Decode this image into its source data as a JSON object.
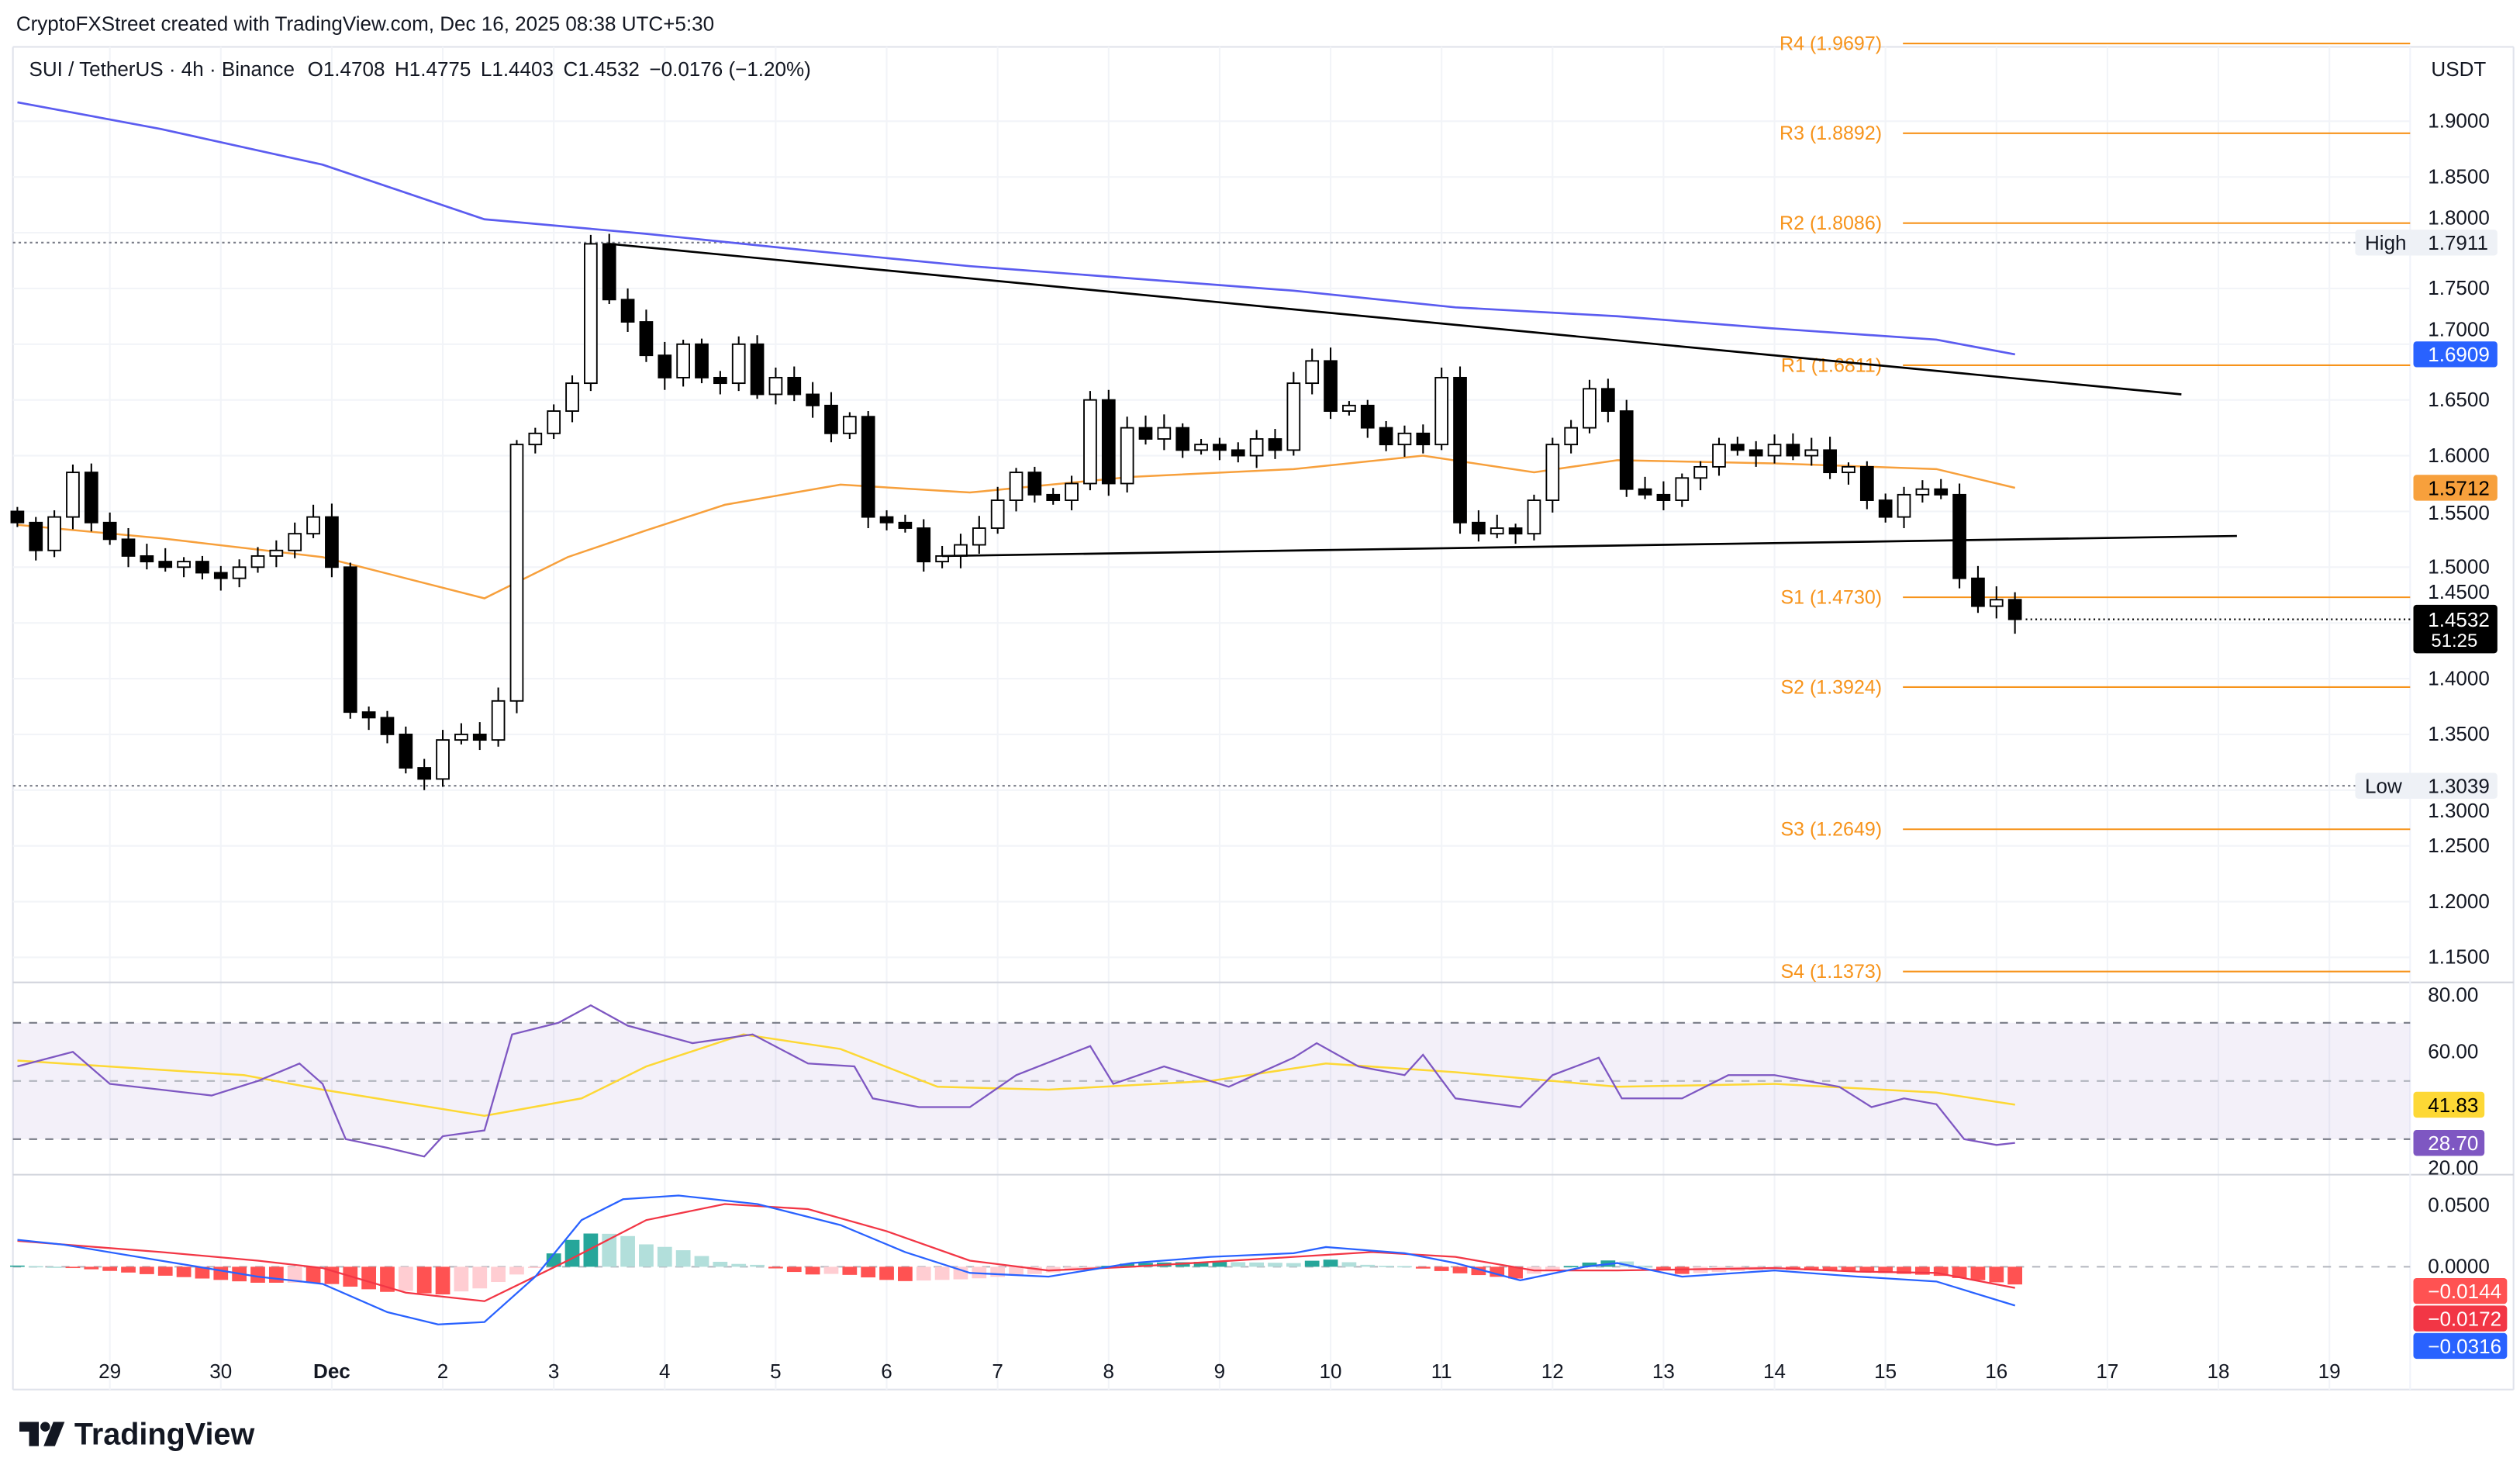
{
  "caption": "CryptoFXStreet created with TradingView.com, Dec 16, 2025 08:38 UTC+5:30",
  "header": {
    "symbol": "SUI / TetherUS · 4h · Binance",
    "open": "O1.4708",
    "high": "H1.4775",
    "low": "L1.4403",
    "close": "C1.4532",
    "change": "−0.0176 (−1.20%)"
  },
  "currency": "USDT",
  "logo_text": "TradingView",
  "colors": {
    "up_body": "#ffffff",
    "down_body": "#000000",
    "ma_long": "#5b5cf0",
    "ma_short": "#f7a03c",
    "pivot": "#f7931a",
    "rsi": "#7e57c2",
    "rsi_ma": "#fdd835",
    "macd": "#2962ff",
    "signal": "#f23645",
    "hist_up_strong": "#26a69a",
    "hist_up_weak": "#b2dfdb",
    "hist_down_strong": "#ff5252",
    "hist_down_weak": "#ffcdd2"
  },
  "chart_data": {
    "type": "candlestick",
    "interval": "4h",
    "start": "Nov 28 04:00",
    "closes": [
      1.54,
      1.515,
      1.545,
      1.585,
      1.54,
      1.525,
      1.51,
      1.505,
      1.5,
      1.505,
      1.495,
      1.49,
      1.5,
      1.51,
      1.515,
      1.53,
      1.545,
      1.5,
      1.37,
      1.365,
      1.35,
      1.32,
      1.31,
      1.345,
      1.35,
      1.345,
      1.38,
      1.61,
      1.62,
      1.64,
      1.665,
      1.79,
      1.74,
      1.72,
      1.69,
      1.67,
      1.7,
      1.67,
      1.665,
      1.7,
      1.655,
      1.67,
      1.655,
      1.645,
      1.62,
      1.635,
      1.545,
      1.54,
      1.535,
      1.505,
      1.51,
      1.52,
      1.535,
      1.56,
      1.585,
      1.565,
      1.56,
      1.575,
      1.65,
      1.575,
      1.625,
      1.615,
      1.625,
      1.605,
      1.61,
      1.605,
      1.6,
      1.615,
      1.605,
      1.665,
      1.685,
      1.64,
      1.645,
      1.625,
      1.61,
      1.62,
      1.61,
      1.67,
      1.54,
      1.53,
      1.535,
      1.53,
      1.56,
      1.61,
      1.625,
      1.66,
      1.64,
      1.57,
      1.565,
      1.56,
      1.58,
      1.59,
      1.61,
      1.605,
      1.6,
      1.61,
      1.6,
      1.605,
      1.585,
      1.59,
      1.56,
      1.545,
      1.565,
      1.57,
      1.565,
      1.49,
      1.465,
      1.4708,
      1.4532
    ],
    "first_open": 1.55,
    "last_candle": {
      "open": 1.4708,
      "high": 1.4775,
      "low": 1.4403,
      "close": 1.4532
    },
    "price_ticks": [
      "1.9000",
      "1.8500",
      "1.8000",
      "1.7500",
      "1.7000",
      "1.6500",
      "1.6000",
      "1.5500",
      "1.5000",
      "1.4500",
      "1.4000",
      "1.3500",
      "1.3000",
      "1.2500",
      "1.2000",
      "1.1500"
    ],
    "time_labels": [
      "29",
      "30",
      "Dec",
      "2",
      "3",
      "4",
      "5",
      "6",
      "7",
      "8",
      "9",
      "10",
      "11",
      "12",
      "13",
      "14",
      "15",
      "16",
      "17",
      "18",
      "19"
    ],
    "ma_long": [
      [
        "Nov 28 04:00",
        1.917
      ],
      [
        "Nov 29 11:00",
        1.893
      ],
      [
        "Nov 30 22:00",
        1.861
      ],
      [
        "Dec 2 09:00",
        1.812
      ],
      [
        "Dec 3 20:00",
        1.799
      ],
      [
        "Dec 5 07:00",
        1.784
      ],
      [
        "Dec 6 18:00",
        1.77
      ],
      [
        "Dec 8 05:00",
        1.759
      ],
      [
        "Dec 9 16:00",
        1.748
      ],
      [
        "Dec 11 03:00",
        1.733
      ],
      [
        "Dec 12 14:00",
        1.725
      ],
      [
        "Dec 14 00:00",
        1.714
      ],
      [
        "Dec 15 11:00",
        1.704
      ],
      [
        "Dec 16 04:00",
        1.6909
      ]
    ],
    "ma_short": [
      [
        "Nov 28 04:00",
        1.538
      ],
      [
        "Nov 29 11:00",
        1.526
      ],
      [
        "Nov 30 22:00",
        1.509
      ],
      [
        "Dec 1 16:00",
        1.49
      ],
      [
        "Dec 2 09:00",
        1.472
      ],
      [
        "Dec 3 03:00",
        1.509
      ],
      [
        "Dec 3 20:00",
        1.533
      ],
      [
        "Dec 4 13:00",
        1.556
      ],
      [
        "Dec 5 14:00",
        1.574
      ],
      [
        "Dec 6 18:00",
        1.567
      ],
      [
        "Dec 8 05:00",
        1.581
      ],
      [
        "Dec 9 16:00",
        1.588
      ],
      [
        "Dec 10 20:00",
        1.6
      ],
      [
        "Dec 11 20:00",
        1.585
      ],
      [
        "Dec 12 14:00",
        1.596
      ],
      [
        "Dec 14 00:00",
        1.593
      ],
      [
        "Dec 15 11:00",
        1.588
      ],
      [
        "Dec 16 04:00",
        1.5712
      ]
    ],
    "trendlines": [
      {
        "from": [
          "Dec 3 12:00",
          1.79
        ],
        "to": [
          "Dec 17 16:00",
          1.655
        ]
      },
      {
        "from": [
          "Dec 6 12:00",
          1.51
        ],
        "to": [
          "Dec 18 04:00",
          1.528
        ]
      }
    ],
    "pivots": [
      {
        "label": "R4 (1.9697)",
        "value": 1.9697
      },
      {
        "label": "R3 (1.8892)",
        "value": 1.8892
      },
      {
        "label": "R2 (1.8086)",
        "value": 1.8086
      },
      {
        "label": "R1 (1.6811)",
        "value": 1.6811
      },
      {
        "label": "S1 (1.4730)",
        "value": 1.473
      },
      {
        "label": "S2 (1.3924)",
        "value": 1.3924
      },
      {
        "label": "S3 (1.2649)",
        "value": 1.2649
      },
      {
        "label": "S4 (1.1373)",
        "value": 1.1373
      }
    ],
    "range_high": {
      "label": "High",
      "value": 1.7911,
      "text": "1.7911"
    },
    "range_low": {
      "label": "Low",
      "value": 1.3039,
      "text": "1.3039"
    },
    "price_badges": {
      "ma_long": "1.6909",
      "ma_short": "1.5712",
      "last": "1.4532",
      "countdown": "51:25"
    },
    "rsi": {
      "ticks": [
        "80.00",
        "60.00",
        "20.00"
      ],
      "bands": [
        70,
        50,
        30
      ],
      "values": [
        [
          "Nov 28 04:00",
          55
        ],
        [
          "Nov 28 16:00",
          60
        ],
        [
          "Nov 29 00:00",
          49
        ],
        [
          "Nov 29 11:00",
          47
        ],
        [
          "Nov 29 22:00",
          45
        ],
        [
          "Nov 30 08:00",
          50
        ],
        [
          "Nov 30 17:00",
          56
        ],
        [
          "Nov 30 22:00",
          49
        ],
        [
          "Dec 1 03:00",
          30
        ],
        [
          "Dec 1 12:00",
          27
        ],
        [
          "Dec 1 20:00",
          24
        ],
        [
          "Dec 2 00:00",
          31
        ],
        [
          "Dec 2 09:00",
          33
        ],
        [
          "Dec 2 15:00",
          66
        ],
        [
          "Dec 3 01:00",
          70
        ],
        [
          "Dec 3 08:00",
          76
        ],
        [
          "Dec 3 16:00",
          69
        ],
        [
          "Dec 4 06:00",
          63
        ],
        [
          "Dec 4 19:00",
          66
        ],
        [
          "Dec 5 07:00",
          56
        ],
        [
          "Dec 5 17:00",
          55
        ],
        [
          "Dec 5 21:00",
          44
        ],
        [
          "Dec 6 07:00",
          41
        ],
        [
          "Dec 6 18:00",
          41
        ],
        [
          "Dec 7 04:00",
          52
        ],
        [
          "Dec 7 20:00",
          62
        ],
        [
          "Dec 8 01:00",
          49
        ],
        [
          "Dec 8 12:00",
          55
        ],
        [
          "Dec 9 02:00",
          48
        ],
        [
          "Dec 9 16:00",
          58
        ],
        [
          "Dec 9 21:00",
          63
        ],
        [
          "Dec 10 06:00",
          55
        ],
        [
          "Dec 10 16:00",
          52
        ],
        [
          "Dec 10 20:00",
          59
        ],
        [
          "Dec 11 03:00",
          44
        ],
        [
          "Dec 11 17:00",
          41
        ],
        [
          "Dec 12 00:00",
          52
        ],
        [
          "Dec 12 10:00",
          58
        ],
        [
          "Dec 12 15:00",
          44
        ],
        [
          "Dec 13 04:00",
          44
        ],
        [
          "Dec 13 14:00",
          52
        ],
        [
          "Dec 14 00:00",
          52
        ],
        [
          "Dec 14 14:00",
          48
        ],
        [
          "Dec 14 21:00",
          41
        ],
        [
          "Dec 15 04:00",
          44
        ],
        [
          "Dec 15 11:00",
          42
        ],
        [
          "Dec 15 17:00",
          30
        ],
        [
          "Dec 16 00:00",
          28
        ],
        [
          "Dec 16 04:00",
          28.7
        ]
      ],
      "ma": [
        [
          "Nov 28 04:00",
          57
        ],
        [
          "Nov 30 05:00",
          52
        ],
        [
          "Nov 30 22:00",
          47
        ],
        [
          "Dec 2 09:00",
          38
        ],
        [
          "Dec 3 06:00",
          44
        ],
        [
          "Dec 3 20:00",
          55
        ],
        [
          "Dec 4 17:00",
          66
        ],
        [
          "Dec 5 14:00",
          61
        ],
        [
          "Dec 6 11:00",
          48
        ],
        [
          "Dec 7 11:00",
          47
        ],
        [
          "Dec 8 22:00",
          50
        ],
        [
          "Dec 9 23:00",
          56
        ],
        [
          "Dec 11 03:00",
          53
        ],
        [
          "Dec 12 14:00",
          48
        ],
        [
          "Dec 14 00:00",
          49
        ],
        [
          "Dec 15 11:00",
          46
        ],
        [
          "Dec 16 04:00",
          41.83
        ]
      ],
      "badge_ma": "41.83",
      "badge_rsi": "28.70"
    },
    "macd": {
      "ticks": [
        "0.0500",
        "0.0000"
      ],
      "macd": [
        [
          "Nov 28 04:00",
          0.022
        ],
        [
          "Nov 28 14:00",
          0.018
        ],
        [
          "Nov 29 11:00",
          0.005
        ],
        [
          "Nov 30 08:00",
          -0.008
        ],
        [
          "Nov 30 22:00",
          -0.014
        ],
        [
          "Dec 1 12:00",
          -0.037
        ],
        [
          "Dec 1 23:00",
          -0.047
        ],
        [
          "Dec 2 09:00",
          -0.045
        ],
        [
          "Dec 2 20:00",
          -0.008
        ],
        [
          "Dec 3 06:00",
          0.038
        ],
        [
          "Dec 3 15:00",
          0.055
        ],
        [
          "Dec 4 03:00",
          0.058
        ],
        [
          "Dec 4 20:00",
          0.051
        ],
        [
          "Dec 5 14:00",
          0.034
        ],
        [
          "Dec 6 04:00",
          0.012
        ],
        [
          "Dec 6 18:00",
          -0.005
        ],
        [
          "Dec 7 11:00",
          -0.008
        ],
        [
          "Dec 8 05:00",
          0.003
        ],
        [
          "Dec 8 22:00",
          0.008
        ],
        [
          "Dec 9 16:00",
          0.011
        ],
        [
          "Dec 9 23:00",
          0.016
        ],
        [
          "Dec 10 16:00",
          0.011
        ],
        [
          "Dec 11 03:00",
          0.003
        ],
        [
          "Dec 11 17:00",
          -0.011
        ],
        [
          "Dec 12 07:00",
          0
        ],
        [
          "Dec 12 14:00",
          0.003
        ],
        [
          "Dec 13 04:00",
          -0.008
        ],
        [
          "Dec 14 00:00",
          -0.003
        ],
        [
          "Dec 14 18:00",
          -0.008
        ],
        [
          "Dec 15 11:00",
          -0.012
        ],
        [
          "Dec 16 04:00",
          -0.0316
        ]
      ],
      "signal": [
        [
          "Nov 28 04:00",
          0.021
        ],
        [
          "Nov 29 11:00",
          0.012
        ],
        [
          "Nov 30 08:00",
          0.005
        ],
        [
          "Nov 30 22:00",
          -0.001
        ],
        [
          "Dec 1 16:00",
          -0.021
        ],
        [
          "Dec 2 09:00",
          -0.028
        ],
        [
          "Dec 3 03:00",
          0.005
        ],
        [
          "Dec 3 20:00",
          0.038
        ],
        [
          "Dec 4 13:00",
          0.051
        ],
        [
          "Dec 5 07:00",
          0.047
        ],
        [
          "Dec 6 00:00",
          0.029
        ],
        [
          "Dec 6 18:00",
          0.005
        ],
        [
          "Dec 7 11:00",
          -0.003
        ],
        [
          "Dec 8 05:00",
          0
        ],
        [
          "Dec 9 16:00",
          0.008
        ],
        [
          "Dec 10 09:00",
          0.012
        ],
        [
          "Dec 11 03:00",
          0.008
        ],
        [
          "Dec 11 20:00",
          -0.003
        ],
        [
          "Dec 12 14:00",
          -0.003
        ],
        [
          "Dec 14 00:00",
          -0.001
        ],
        [
          "Dec 14 18:00",
          -0.004
        ],
        [
          "Dec 15 11:00",
          -0.005
        ],
        [
          "Dec 16 04:00",
          -0.0172
        ]
      ],
      "badge_hist": "−0.0144",
      "badge_signal": "−0.0172",
      "badge_macd": "−0.0316"
    }
  }
}
